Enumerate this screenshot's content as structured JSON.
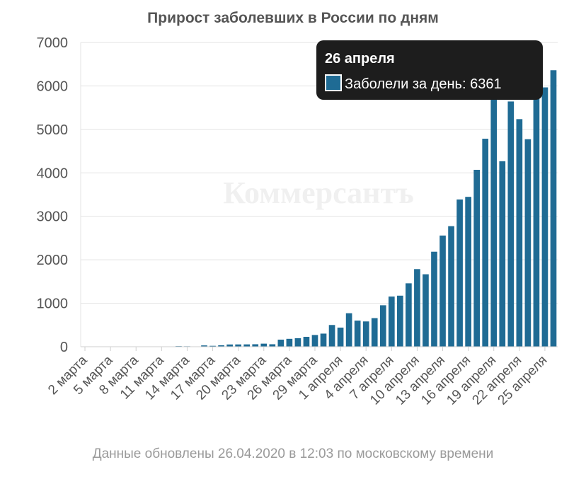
{
  "chart_data": {
    "type": "bar",
    "title": "Прирост заболевших в России по дням",
    "xlabel": "",
    "ylabel": "",
    "ylim": [
      0,
      7000
    ],
    "yticks": [
      0,
      1000,
      2000,
      3000,
      4000,
      5000,
      6000,
      7000
    ],
    "grid": true,
    "color": "#1f6b94",
    "categories": [
      "2 марта",
      "3 марта",
      "4 марта",
      "5 марта",
      "6 марта",
      "7 марта",
      "8 марта",
      "9 марта",
      "10 марта",
      "11 марта",
      "12 марта",
      "13 марта",
      "14 марта",
      "15 марта",
      "16 марта",
      "17 марта",
      "18 марта",
      "19 марта",
      "20 марта",
      "21 марта",
      "22 марта",
      "23 марта",
      "24 марта",
      "25 марта",
      "26 марта",
      "27 марта",
      "28 марта",
      "29 марта",
      "30 марта",
      "31 марта",
      "1 апреля",
      "2 апреля",
      "3 апреля",
      "4 апреля",
      "5 апреля",
      "6 апреля",
      "7 апреля",
      "8 апреля",
      "9 апреля",
      "10 апреля",
      "11 апреля",
      "12 апреля",
      "13 апреля",
      "14 апреля",
      "15 апреля",
      "16 апреля",
      "17 апреля",
      "18 апреля",
      "19 апреля",
      "20 апреля",
      "21 апреля",
      "22 апреля",
      "23 апреля",
      "24 апреля",
      "25 апреля",
      "26 апреля"
    ],
    "tick_labels": [
      "2 марта",
      "5 марта",
      "8 марта",
      "11 марта",
      "14 марта",
      "17 марта",
      "20 марта",
      "23 марта",
      "26 марта",
      "29 марта",
      "1 апреля",
      "4 апреля",
      "7 апреля",
      "10 апреля",
      "13 апреля",
      "16 апреля",
      "19 апреля",
      "22 апреля",
      "25 апреля"
    ],
    "series": [
      {
        "name": "Заболели за день",
        "values": [
          0,
          0,
          0,
          0,
          3,
          0,
          0,
          3,
          0,
          7,
          6,
          14,
          11,
          4,
          30,
          21,
          33,
          52,
          53,
          54,
          57,
          71,
          57,
          163,
          182,
          196,
          228,
          270,
          302,
          500,
          440,
          771,
          601,
          582,
          658,
          954,
          1154,
          1175,
          1459,
          1786,
          1667,
          2186,
          2558,
          2774,
          3388,
          3448,
          4070,
          4785,
          6060,
          4268,
          5642,
          5236,
          4774,
          5849,
          5966,
          6361
        ]
      }
    ],
    "tooltip": {
      "title": "26 апреля",
      "label": "Заболели за день: 6361"
    },
    "watermark": "Коммерсантъ",
    "footer": "Данные обновлены 26.04.2020 в 12:03 по московскому времени"
  }
}
